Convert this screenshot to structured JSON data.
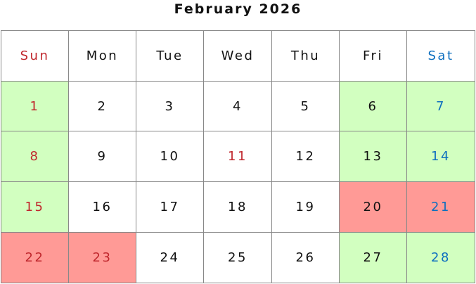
{
  "title": "February 2026",
  "colors": {
    "holiday_bg": "#ff9a96",
    "weekend_bg": "#d2ffc0",
    "sunday_text": "#c0272d",
    "saturday_text": "#0d6fbf",
    "normal_text": "#111111",
    "holiday_text": "#c0272d"
  },
  "weekdays": [
    {
      "label": "Sun",
      "text": "sunday"
    },
    {
      "label": "Mon",
      "text": "normal"
    },
    {
      "label": "Tue",
      "text": "normal"
    },
    {
      "label": "Wed",
      "text": "normal"
    },
    {
      "label": "Thu",
      "text": "normal"
    },
    {
      "label": "Fri",
      "text": "normal"
    },
    {
      "label": "Sat",
      "text": "saturday"
    }
  ],
  "weeks": [
    [
      {
        "day": "1",
        "bg": "weekend",
        "text": "sunday"
      },
      {
        "day": "2"
      },
      {
        "day": "3"
      },
      {
        "day": "4"
      },
      {
        "day": "5"
      },
      {
        "day": "6",
        "bg": "weekend"
      },
      {
        "day": "7",
        "bg": "weekend",
        "text": "saturday"
      }
    ],
    [
      {
        "day": "8",
        "bg": "weekend",
        "text": "sunday"
      },
      {
        "day": "9"
      },
      {
        "day": "10"
      },
      {
        "day": "11",
        "text": "holiday"
      },
      {
        "day": "12"
      },
      {
        "day": "13",
        "bg": "weekend"
      },
      {
        "day": "14",
        "bg": "weekend",
        "text": "saturday"
      }
    ],
    [
      {
        "day": "15",
        "bg": "weekend",
        "text": "sunday"
      },
      {
        "day": "16"
      },
      {
        "day": "17"
      },
      {
        "day": "18"
      },
      {
        "day": "19"
      },
      {
        "day": "20",
        "bg": "holiday"
      },
      {
        "day": "21",
        "bg": "holiday",
        "text": "saturday"
      }
    ],
    [
      {
        "day": "22",
        "bg": "holiday",
        "text": "sunday"
      },
      {
        "day": "23",
        "bg": "holiday",
        "text": "holiday"
      },
      {
        "day": "24"
      },
      {
        "day": "25"
      },
      {
        "day": "26"
      },
      {
        "day": "27",
        "bg": "weekend"
      },
      {
        "day": "28",
        "bg": "weekend",
        "text": "saturday"
      }
    ]
  ]
}
